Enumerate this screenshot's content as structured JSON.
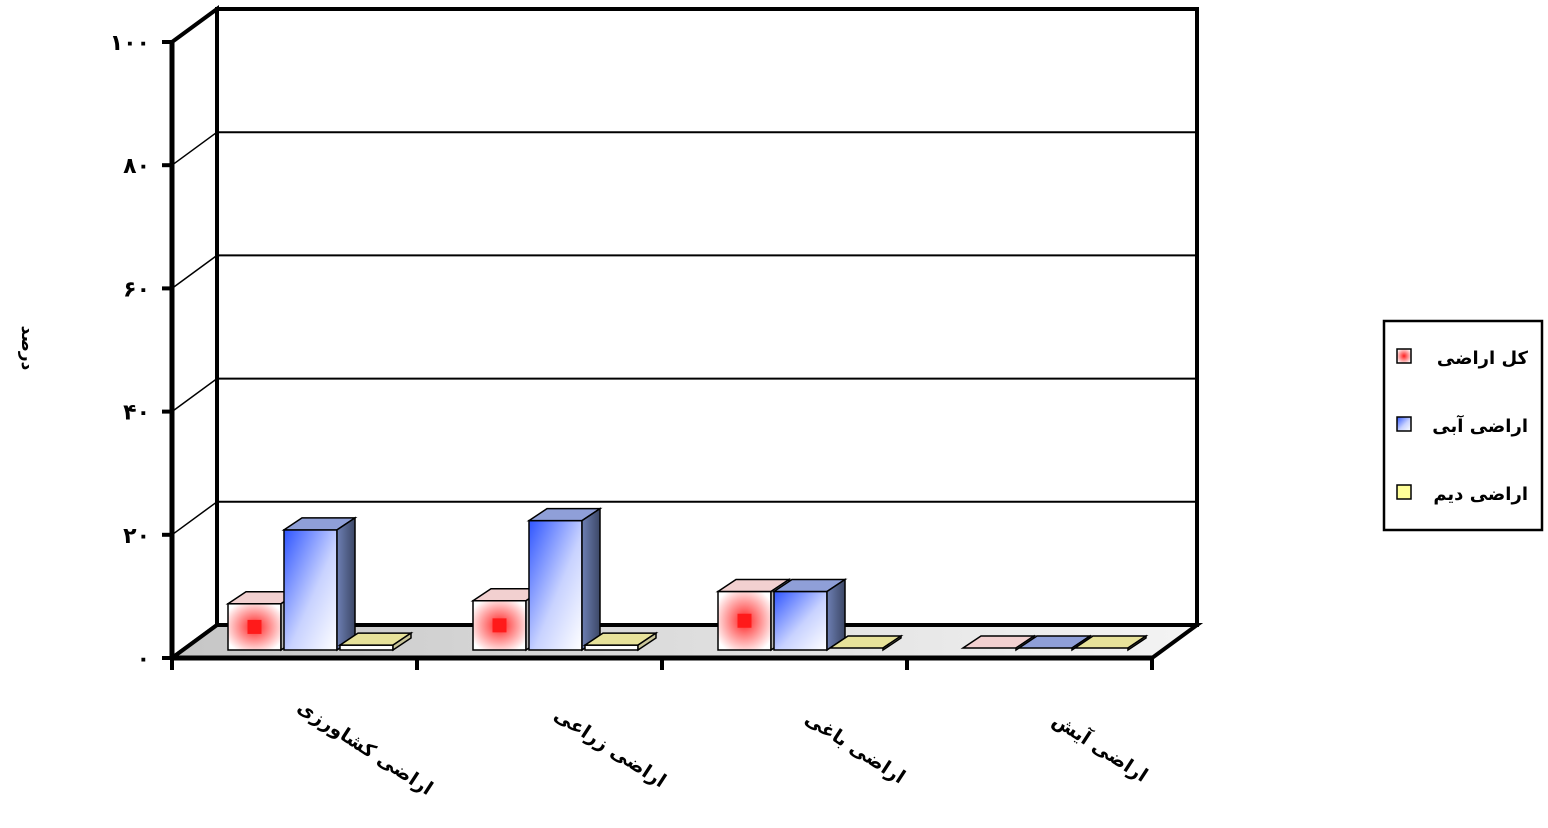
{
  "chart_data": {
    "type": "bar",
    "title": "",
    "xlabel": "",
    "ylabel": "درصد",
    "ylim": [
      0,
      100
    ],
    "yticks": [
      0,
      20,
      40,
      60,
      80,
      100
    ],
    "ytick_labels": [
      "۰",
      "۲۰",
      "۴۰",
      "۶۰",
      "۸۰",
      "۱۰۰"
    ],
    "categories": [
      "اراضی کشاورزی",
      "اراضی زراعی",
      "اراضی باغی",
      "اراضی آیش"
    ],
    "series": [
      {
        "name": "کل اراضی",
        "values": [
          7.5,
          8,
          9.5,
          0.2
        ],
        "color": "#ff4d4d"
      },
      {
        "name": "اراضی آبی",
        "values": [
          19.5,
          21,
          9.5,
          0.2
        ],
        "color": "#3f5fff"
      },
      {
        "name": "اراضی دیم",
        "values": [
          0.8,
          0.8,
          0.2,
          0.2
        ],
        "color": "#ffff99"
      }
    ],
    "grid": true,
    "legend_position": "right",
    "style": "3d"
  }
}
